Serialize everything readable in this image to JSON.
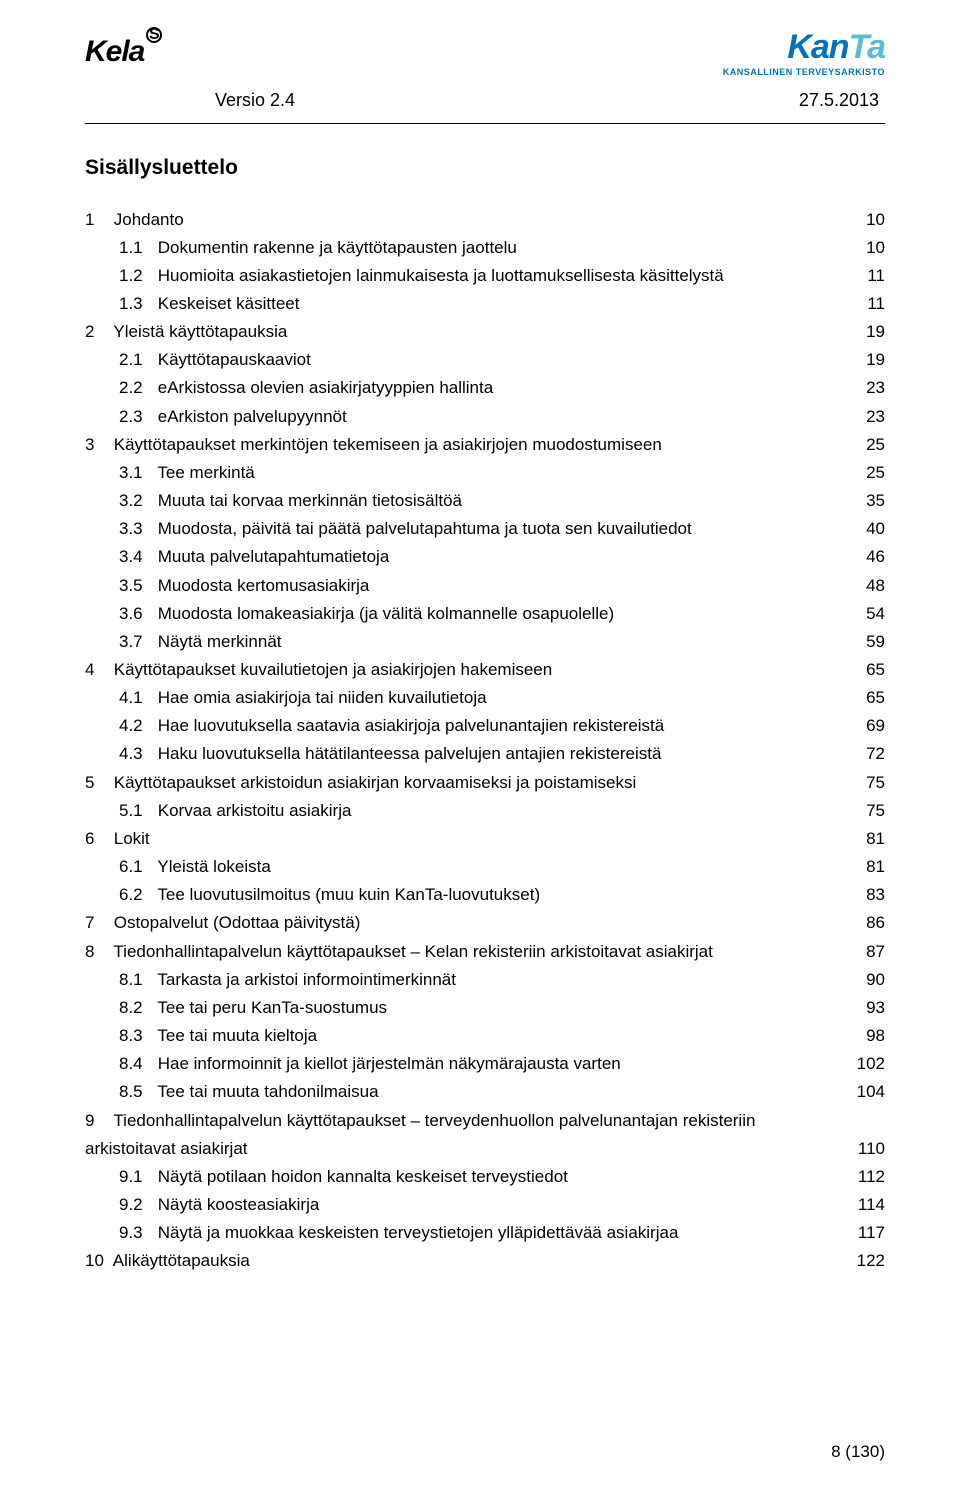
{
  "header": {
    "logo_left": {
      "word": "Kela",
      "sup": "S"
    },
    "logo_right": {
      "main": "Kan",
      "tail": "Ta",
      "sub": "KANSALLINEN TERVEYSARKISTO"
    },
    "version": "Versio 2.4",
    "date": "27.5.2013"
  },
  "toc": {
    "title": "Sisällysluettelo",
    "entries": [
      {
        "level": 1,
        "num": "1",
        "text": "Johdanto",
        "page": "10"
      },
      {
        "level": 2,
        "num": "1.1",
        "text": "Dokumentin rakenne ja käyttötapausten jaottelu",
        "page": "10"
      },
      {
        "level": 2,
        "num": "1.2",
        "text": "Huomioita asiakastietojen lainmukaisesta ja luottamuksellisesta käsittelystä",
        "page": "11"
      },
      {
        "level": 2,
        "num": "1.3",
        "text": "Keskeiset käsitteet",
        "page": "11"
      },
      {
        "level": 1,
        "num": "2",
        "text": "Yleistä käyttötapauksia",
        "page": "19"
      },
      {
        "level": 2,
        "num": "2.1",
        "text": "Käyttötapauskaaviot",
        "page": "19"
      },
      {
        "level": 2,
        "num": "2.2",
        "text": "eArkistossa olevien asiakirjatyyppien hallinta",
        "page": "23"
      },
      {
        "level": 2,
        "num": "2.3",
        "text": "eArkiston palvelupyynnöt",
        "page": "23"
      },
      {
        "level": 1,
        "num": "3",
        "text": "Käyttötapaukset merkintöjen tekemiseen ja asiakirjojen muodostumiseen",
        "page": "25"
      },
      {
        "level": 2,
        "num": "3.1",
        "text": "Tee merkintä",
        "page": "25"
      },
      {
        "level": 2,
        "num": "3.2",
        "text": "Muuta tai korvaa merkinnän tietosisältöä",
        "page": "35"
      },
      {
        "level": 2,
        "num": "3.3",
        "text": "Muodosta, päivitä tai päätä palvelutapahtuma ja tuota sen kuvailutiedot",
        "page": "40"
      },
      {
        "level": 2,
        "num": "3.4",
        "text": "Muuta palvelutapahtumatietoja",
        "page": "46"
      },
      {
        "level": 2,
        "num": "3.5",
        "text": "Muodosta kertomusasiakirja",
        "page": "48"
      },
      {
        "level": 2,
        "num": "3.6",
        "text": "Muodosta lomakeasiakirja (ja välitä kolmannelle osapuolelle)",
        "page": "54"
      },
      {
        "level": 2,
        "num": "3.7",
        "text": "Näytä merkinnät",
        "page": "59"
      },
      {
        "level": 1,
        "num": "4",
        "text": "Käyttötapaukset kuvailutietojen ja asiakirjojen hakemiseen",
        "page": "65"
      },
      {
        "level": 2,
        "num": "4.1",
        "text": "Hae omia asiakirjoja tai niiden kuvailutietoja",
        "page": "65"
      },
      {
        "level": 2,
        "num": "4.2",
        "text": "Hae luovutuksella saatavia asiakirjoja palvelunantajien rekistereistä",
        "page": "69"
      },
      {
        "level": 2,
        "num": "4.3",
        "text": "Haku luovutuksella hätätilanteessa palvelujen antajien rekistereistä",
        "page": "72"
      },
      {
        "level": 1,
        "num": "5",
        "text": "Käyttötapaukset arkistoidun asiakirjan korvaamiseksi ja poistamiseksi",
        "page": "75"
      },
      {
        "level": 2,
        "num": "5.1",
        "text": "Korvaa arkistoitu asiakirja",
        "page": "75"
      },
      {
        "level": 1,
        "num": "6",
        "text": "Lokit",
        "page": "81"
      },
      {
        "level": 2,
        "num": "6.1",
        "text": "Yleistä lokeista",
        "page": "81"
      },
      {
        "level": 2,
        "num": "6.2",
        "text": "Tee luovutusilmoitus (muu kuin KanTa-luovutukset)",
        "page": "83"
      },
      {
        "level": 1,
        "num": "7",
        "text": "Ostopalvelut (Odottaa päivitystä)",
        "page": "86"
      },
      {
        "level": 1,
        "num": "8",
        "text": "Tiedonhallintapalvelun käyttötapaukset – Kelan rekisteriin arkistoitavat asiakirjat",
        "page": "87"
      },
      {
        "level": 2,
        "num": "8.1",
        "text": "Tarkasta ja arkistoi informointimerkinnät",
        "page": "90"
      },
      {
        "level": 2,
        "num": "8.2",
        "text": "Tee tai peru KanTa-suostumus",
        "page": "93"
      },
      {
        "level": 2,
        "num": "8.3",
        "text": "Tee tai muuta kieltoja",
        "page": "98"
      },
      {
        "level": 2,
        "num": "8.4",
        "text": "Hae informoinnit ja kiellot järjestelmän näkymärajausta varten",
        "page": "102"
      },
      {
        "level": 2,
        "num": "8.5",
        "text": "Tee tai muuta tahdonilmaisua",
        "page": "104"
      },
      {
        "level": 1,
        "num": "9",
        "text": "Tiedonhallintapalvelun käyttötapaukset – terveydenhuollon palvelunantajan rekisteriin",
        "page": "",
        "nopage": true
      },
      {
        "level": "cont",
        "num": "",
        "text": "arkistoitavat asiakirjat",
        "page": "110"
      },
      {
        "level": 2,
        "num": "9.1",
        "text": "Näytä potilaan hoidon kannalta keskeiset terveystiedot",
        "page": "112"
      },
      {
        "level": 2,
        "num": "9.2",
        "text": "Näytä koosteasiakirja",
        "page": "114"
      },
      {
        "level": 2,
        "num": "9.3",
        "text": "Näytä ja muokkaa keskeisten terveystietojen ylläpidettävää asiakirjaa",
        "page": "117"
      },
      {
        "level": 1,
        "num": "10",
        "text": "Alikäyttötapauksia",
        "page": "122"
      }
    ]
  },
  "footer": {
    "text": "8 (130)"
  }
}
